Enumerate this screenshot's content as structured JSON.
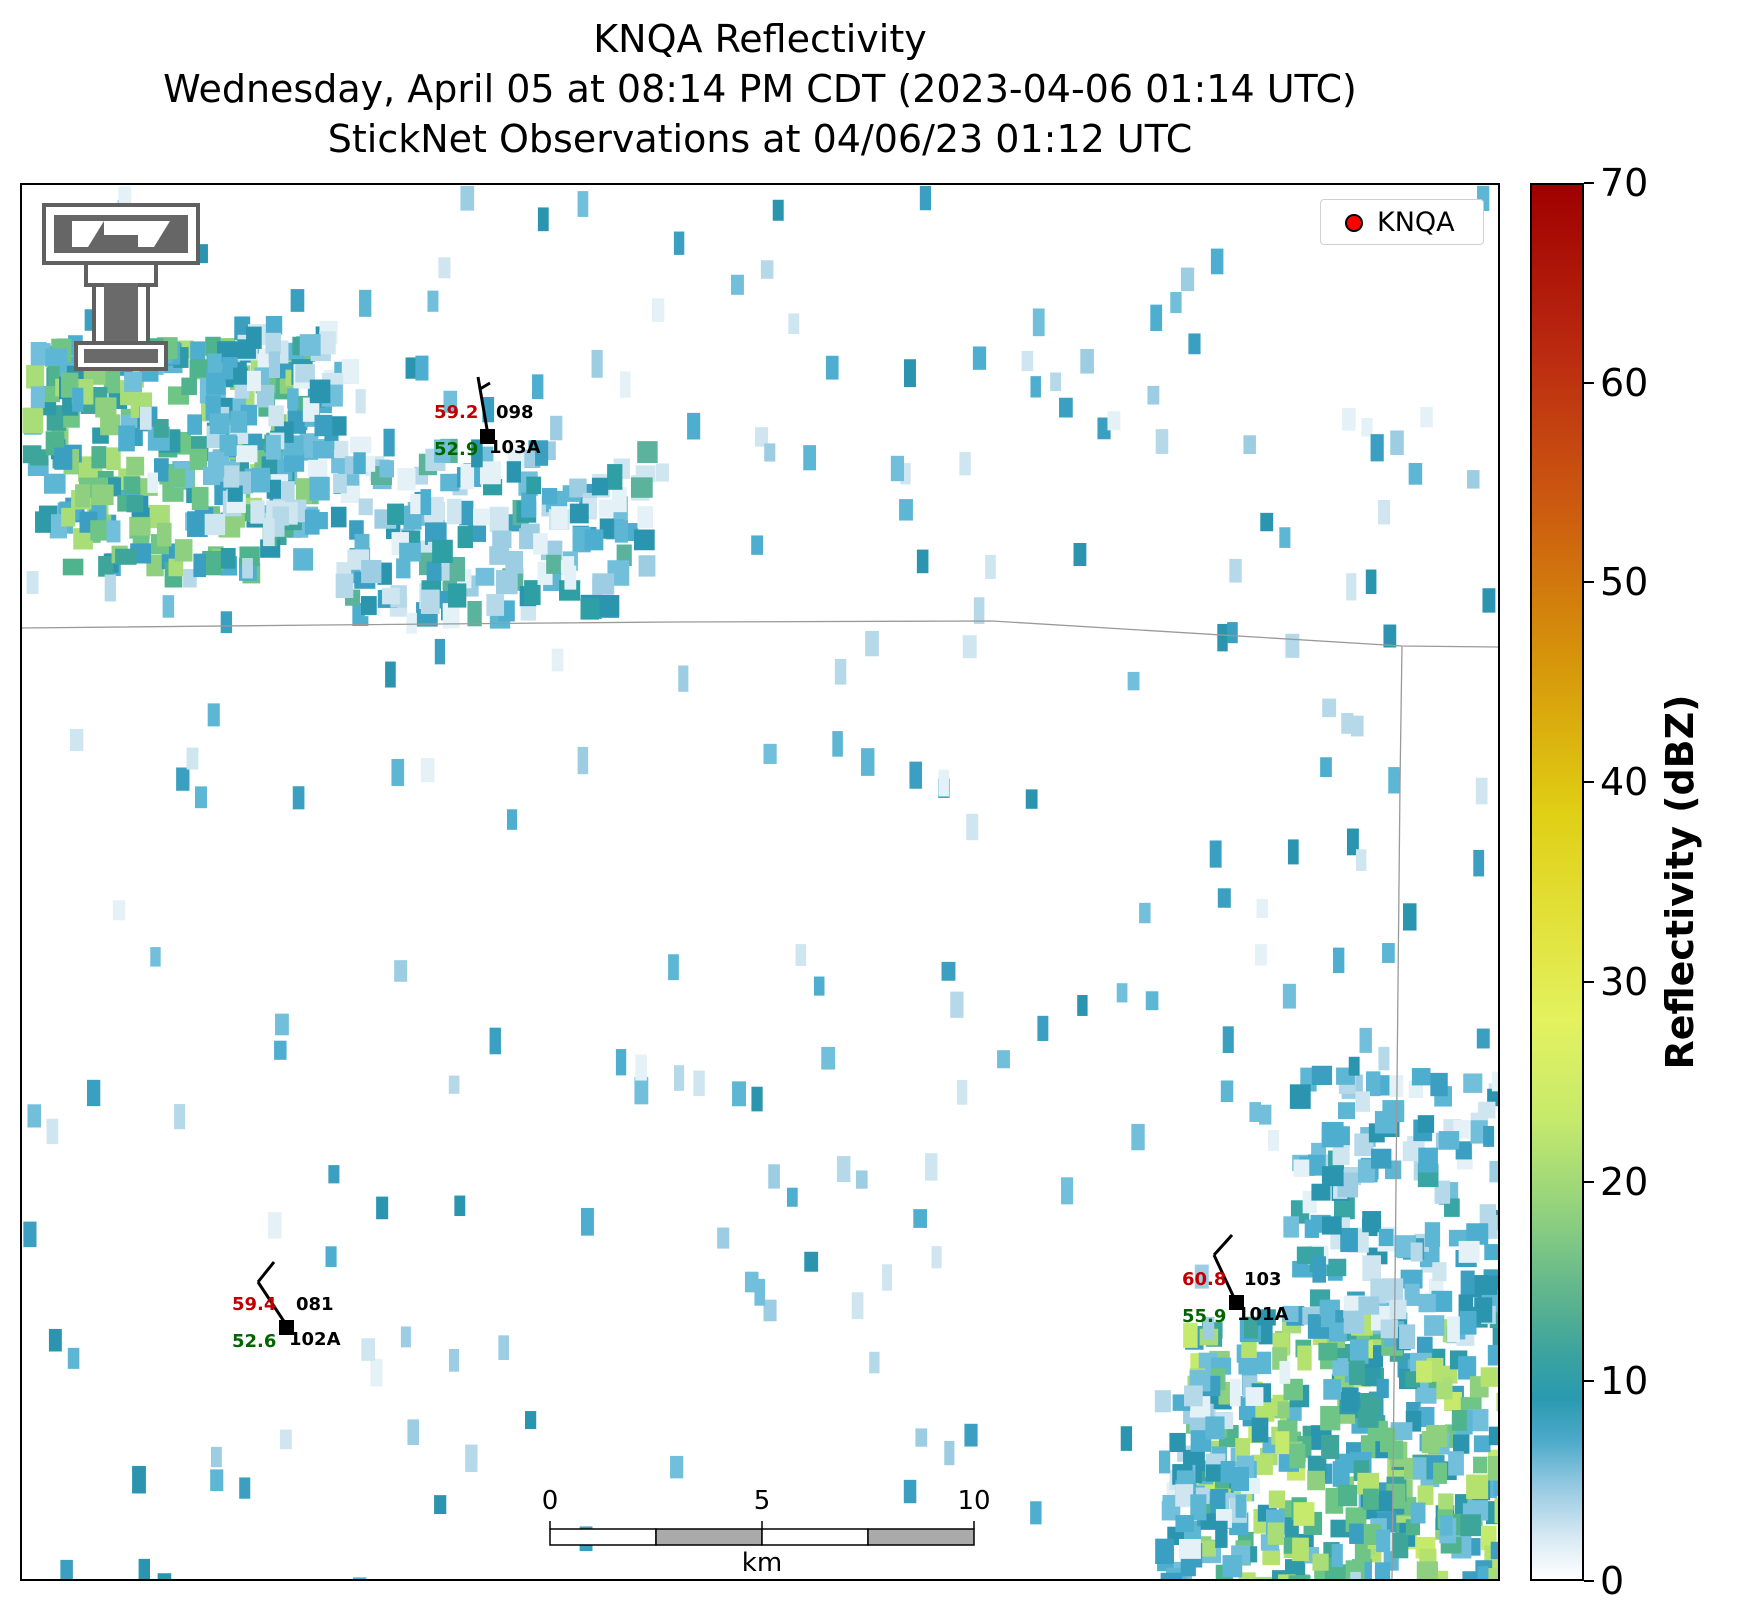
{
  "title": {
    "line1": "KNQA Reflectivity",
    "line2": "Wednesday, April 05 at 08:14 PM CDT (2023-04-06 01:14 UTC)",
    "line3": "StickNet Observations at 04/06/23 01:12 UTC"
  },
  "legend": {
    "label": "KNQA",
    "marker_color": "#ff0000"
  },
  "colorbar": {
    "label": "Reflectivity (dBZ)",
    "ticks": [
      "0",
      "10",
      "20",
      "30",
      "40",
      "50",
      "60",
      "70"
    ],
    "range": [
      0,
      70
    ]
  },
  "stations": [
    {
      "id": "103A",
      "temperature": "59.2",
      "dewpoint": "52.9",
      "pressure": "098",
      "temp_color": "#c00000",
      "dew_color": "#006400"
    },
    {
      "id": "102A",
      "temperature": "59.4",
      "dewpoint": "52.6",
      "pressure": "081",
      "temp_color": "#c00000",
      "dew_color": "#006400"
    },
    {
      "id": "101A",
      "temperature": "60.8",
      "dewpoint": "55.9",
      "pressure": "103",
      "temp_color": "#c00000",
      "dew_color": "#006400"
    }
  ],
  "scale_bar": {
    "ticks": [
      "0",
      "5",
      "10"
    ],
    "unit": "km"
  },
  "logo": {
    "description_name": "texas-tech-logo"
  }
}
